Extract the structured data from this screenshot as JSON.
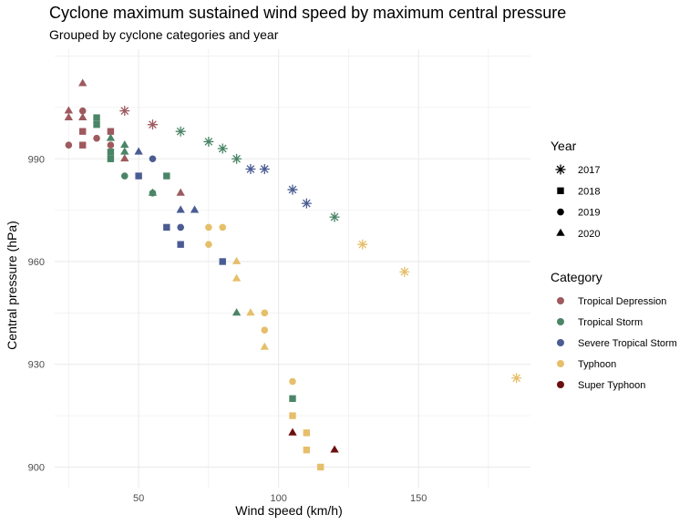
{
  "chart_data": {
    "type": "scatter",
    "title": "Cyclone maximum sustained wind speed by maximum central pressure",
    "subtitle": "Grouped by cyclone categories and year",
    "xlabel": "Wind speed (km/h)",
    "ylabel": "Central pressure (hPa)",
    "xlim": [
      20,
      190
    ],
    "ylim": [
      894,
      1022
    ],
    "xticks": [
      50,
      100,
      150
    ],
    "yticks": [
      900,
      930,
      960,
      990
    ],
    "grid": true,
    "legend_placement": "right",
    "legends": {
      "year": {
        "title": "Year",
        "items": [
          {
            "label": "2017",
            "shape": "asterisk"
          },
          {
            "label": "2018",
            "shape": "square"
          },
          {
            "label": "2019",
            "shape": "circle"
          },
          {
            "label": "2020",
            "shape": "triangle"
          }
        ]
      },
      "category": {
        "title": "Category",
        "items": [
          {
            "label": "Tropical Depression",
            "color": "#9e5a5e"
          },
          {
            "label": "Tropical Storm",
            "color": "#4b8567"
          },
          {
            "label": "Severe Tropical Storm",
            "color": "#4a5c92"
          },
          {
            "label": "Typhoon",
            "color": "#e6bf6b"
          },
          {
            "label": "Super Typhoon",
            "color": "#6b0f0f"
          }
        ]
      }
    },
    "points": [
      {
        "x": 45,
        "y": 1004,
        "year": "2017",
        "category": "Tropical Depression"
      },
      {
        "x": 55,
        "y": 1000,
        "year": "2017",
        "category": "Tropical Depression"
      },
      {
        "x": 65,
        "y": 998,
        "year": "2017",
        "category": "Tropical Storm"
      },
      {
        "x": 75,
        "y": 995,
        "year": "2017",
        "category": "Tropical Storm"
      },
      {
        "x": 80,
        "y": 993,
        "year": "2017",
        "category": "Tropical Storm"
      },
      {
        "x": 85,
        "y": 990,
        "year": "2017",
        "category": "Tropical Storm"
      },
      {
        "x": 90,
        "y": 987,
        "year": "2017",
        "category": "Severe Tropical Storm"
      },
      {
        "x": 95,
        "y": 987,
        "year": "2017",
        "category": "Severe Tropical Storm"
      },
      {
        "x": 105,
        "y": 981,
        "year": "2017",
        "category": "Severe Tropical Storm"
      },
      {
        "x": 110,
        "y": 977,
        "year": "2017",
        "category": "Severe Tropical Storm"
      },
      {
        "x": 120,
        "y": 973,
        "year": "2017",
        "category": "Tropical Storm"
      },
      {
        "x": 130,
        "y": 965,
        "year": "2017",
        "category": "Typhoon"
      },
      {
        "x": 145,
        "y": 957,
        "year": "2017",
        "category": "Typhoon"
      },
      {
        "x": 185,
        "y": 926,
        "year": "2017",
        "category": "Typhoon"
      },
      {
        "x": 30,
        "y": 998,
        "year": "2018",
        "category": "Tropical Depression"
      },
      {
        "x": 30,
        "y": 994,
        "year": "2018",
        "category": "Tropical Depression"
      },
      {
        "x": 35,
        "y": 1002,
        "year": "2018",
        "category": "Tropical Storm"
      },
      {
        "x": 35,
        "y": 1000,
        "year": "2018",
        "category": "Tropical Storm"
      },
      {
        "x": 40,
        "y": 998,
        "year": "2018",
        "category": "Tropical Depression"
      },
      {
        "x": 40,
        "y": 992,
        "year": "2018",
        "category": "Tropical Storm"
      },
      {
        "x": 40,
        "y": 990,
        "year": "2018",
        "category": "Tropical Storm"
      },
      {
        "x": 50,
        "y": 985,
        "year": "2018",
        "category": "Severe Tropical Storm"
      },
      {
        "x": 60,
        "y": 985,
        "year": "2018",
        "category": "Tropical Storm"
      },
      {
        "x": 60,
        "y": 970,
        "year": "2018",
        "category": "Severe Tropical Storm"
      },
      {
        "x": 65,
        "y": 965,
        "year": "2018",
        "category": "Severe Tropical Storm"
      },
      {
        "x": 80,
        "y": 960,
        "year": "2018",
        "category": "Severe Tropical Storm"
      },
      {
        "x": 105,
        "y": 920,
        "year": "2018",
        "category": "Tropical Storm"
      },
      {
        "x": 105,
        "y": 915,
        "year": "2018",
        "category": "Typhoon"
      },
      {
        "x": 110,
        "y": 910,
        "year": "2018",
        "category": "Typhoon"
      },
      {
        "x": 110,
        "y": 905,
        "year": "2018",
        "category": "Typhoon"
      },
      {
        "x": 115,
        "y": 900,
        "year": "2018",
        "category": "Typhoon"
      },
      {
        "x": 25,
        "y": 994,
        "year": "2019",
        "category": "Tropical Depression"
      },
      {
        "x": 30,
        "y": 1004,
        "year": "2019",
        "category": "Tropical Depression"
      },
      {
        "x": 35,
        "y": 996,
        "year": "2019",
        "category": "Tropical Depression"
      },
      {
        "x": 40,
        "y": 994,
        "year": "2019",
        "category": "Tropical Depression"
      },
      {
        "x": 45,
        "y": 985,
        "year": "2019",
        "category": "Tropical Storm"
      },
      {
        "x": 55,
        "y": 990,
        "year": "2019",
        "category": "Severe Tropical Storm"
      },
      {
        "x": 55,
        "y": 980,
        "year": "2019",
        "category": "Tropical Storm"
      },
      {
        "x": 65,
        "y": 970,
        "year": "2019",
        "category": "Severe Tropical Storm"
      },
      {
        "x": 75,
        "y": 970,
        "year": "2019",
        "category": "Typhoon"
      },
      {
        "x": 75,
        "y": 965,
        "year": "2019",
        "category": "Typhoon"
      },
      {
        "x": 80,
        "y": 970,
        "year": "2019",
        "category": "Typhoon"
      },
      {
        "x": 95,
        "y": 945,
        "year": "2019",
        "category": "Typhoon"
      },
      {
        "x": 95,
        "y": 940,
        "year": "2019",
        "category": "Typhoon"
      },
      {
        "x": 105,
        "y": 925,
        "year": "2019",
        "category": "Typhoon"
      },
      {
        "x": 25,
        "y": 1004,
        "year": "2020",
        "category": "Tropical Depression"
      },
      {
        "x": 25,
        "y": 1002,
        "year": "2020",
        "category": "Tropical Depression"
      },
      {
        "x": 30,
        "y": 1012,
        "year": "2020",
        "category": "Tropical Depression"
      },
      {
        "x": 30,
        "y": 1002,
        "year": "2020",
        "category": "Tropical Depression"
      },
      {
        "x": 40,
        "y": 996,
        "year": "2020",
        "category": "Tropical Storm"
      },
      {
        "x": 45,
        "y": 994,
        "year": "2020",
        "category": "Tropical Storm"
      },
      {
        "x": 45,
        "y": 992,
        "year": "2020",
        "category": "Tropical Storm"
      },
      {
        "x": 45,
        "y": 990,
        "year": "2020",
        "category": "Tropical Depression"
      },
      {
        "x": 50,
        "y": 992,
        "year": "2020",
        "category": "Severe Tropical Storm"
      },
      {
        "x": 55,
        "y": 980,
        "year": "2020",
        "category": "Tropical Storm"
      },
      {
        "x": 65,
        "y": 980,
        "year": "2020",
        "category": "Tropical Depression"
      },
      {
        "x": 65,
        "y": 975,
        "year": "2020",
        "category": "Severe Tropical Storm"
      },
      {
        "x": 70,
        "y": 975,
        "year": "2020",
        "category": "Severe Tropical Storm"
      },
      {
        "x": 85,
        "y": 960,
        "year": "2020",
        "category": "Typhoon"
      },
      {
        "x": 85,
        "y": 955,
        "year": "2020",
        "category": "Typhoon"
      },
      {
        "x": 85,
        "y": 945,
        "year": "2020",
        "category": "Tropical Storm"
      },
      {
        "x": 90,
        "y": 945,
        "year": "2020",
        "category": "Typhoon"
      },
      {
        "x": 95,
        "y": 935,
        "year": "2020",
        "category": "Typhoon"
      },
      {
        "x": 105,
        "y": 910,
        "year": "2020",
        "category": "Super Typhoon"
      },
      {
        "x": 120,
        "y": 905,
        "year": "2020",
        "category": "Super Typhoon"
      }
    ]
  }
}
